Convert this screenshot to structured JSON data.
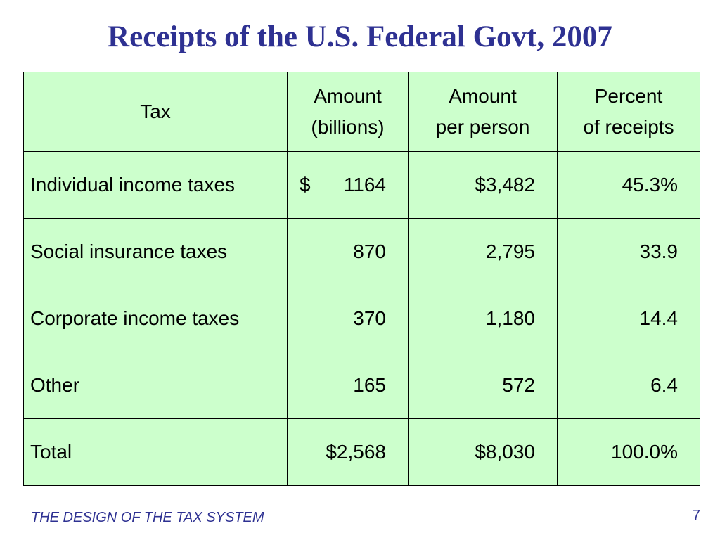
{
  "slide": {
    "title": "Receipts of the U.S. Federal Govt, 2007",
    "footer_text": "THE DESIGN OF THE TAX SYSTEM",
    "page_number": "7"
  },
  "table": {
    "headers": [
      {
        "line1": "Tax",
        "line2": ""
      },
      {
        "line1": "Amount",
        "line2": "(billions)"
      },
      {
        "line1": "Amount",
        "line2": "per person"
      },
      {
        "line1": "Percent",
        "line2": "of receipts"
      }
    ],
    "rows": [
      {
        "tax": "Individual income taxes",
        "currency": "$",
        "amount": "1164",
        "per_person": "$3,482",
        "percent": "45.3%"
      },
      {
        "tax": "Social insurance taxes",
        "currency": "",
        "amount": "870",
        "per_person": "2,795",
        "percent": "33.9"
      },
      {
        "tax": "Corporate income taxes",
        "currency": "",
        "amount": "370",
        "per_person": "1,180",
        "percent": "14.4"
      },
      {
        "tax": "Other",
        "currency": "",
        "amount": "165",
        "per_person": "572",
        "percent": "6.4"
      }
    ],
    "total": {
      "tax": "Total",
      "amount": "$2,568",
      "per_person": "$8,030",
      "percent": "100.0%"
    }
  },
  "colors": {
    "title": "#2e3192",
    "table_background": "#ccffcc",
    "border": "#000000"
  }
}
